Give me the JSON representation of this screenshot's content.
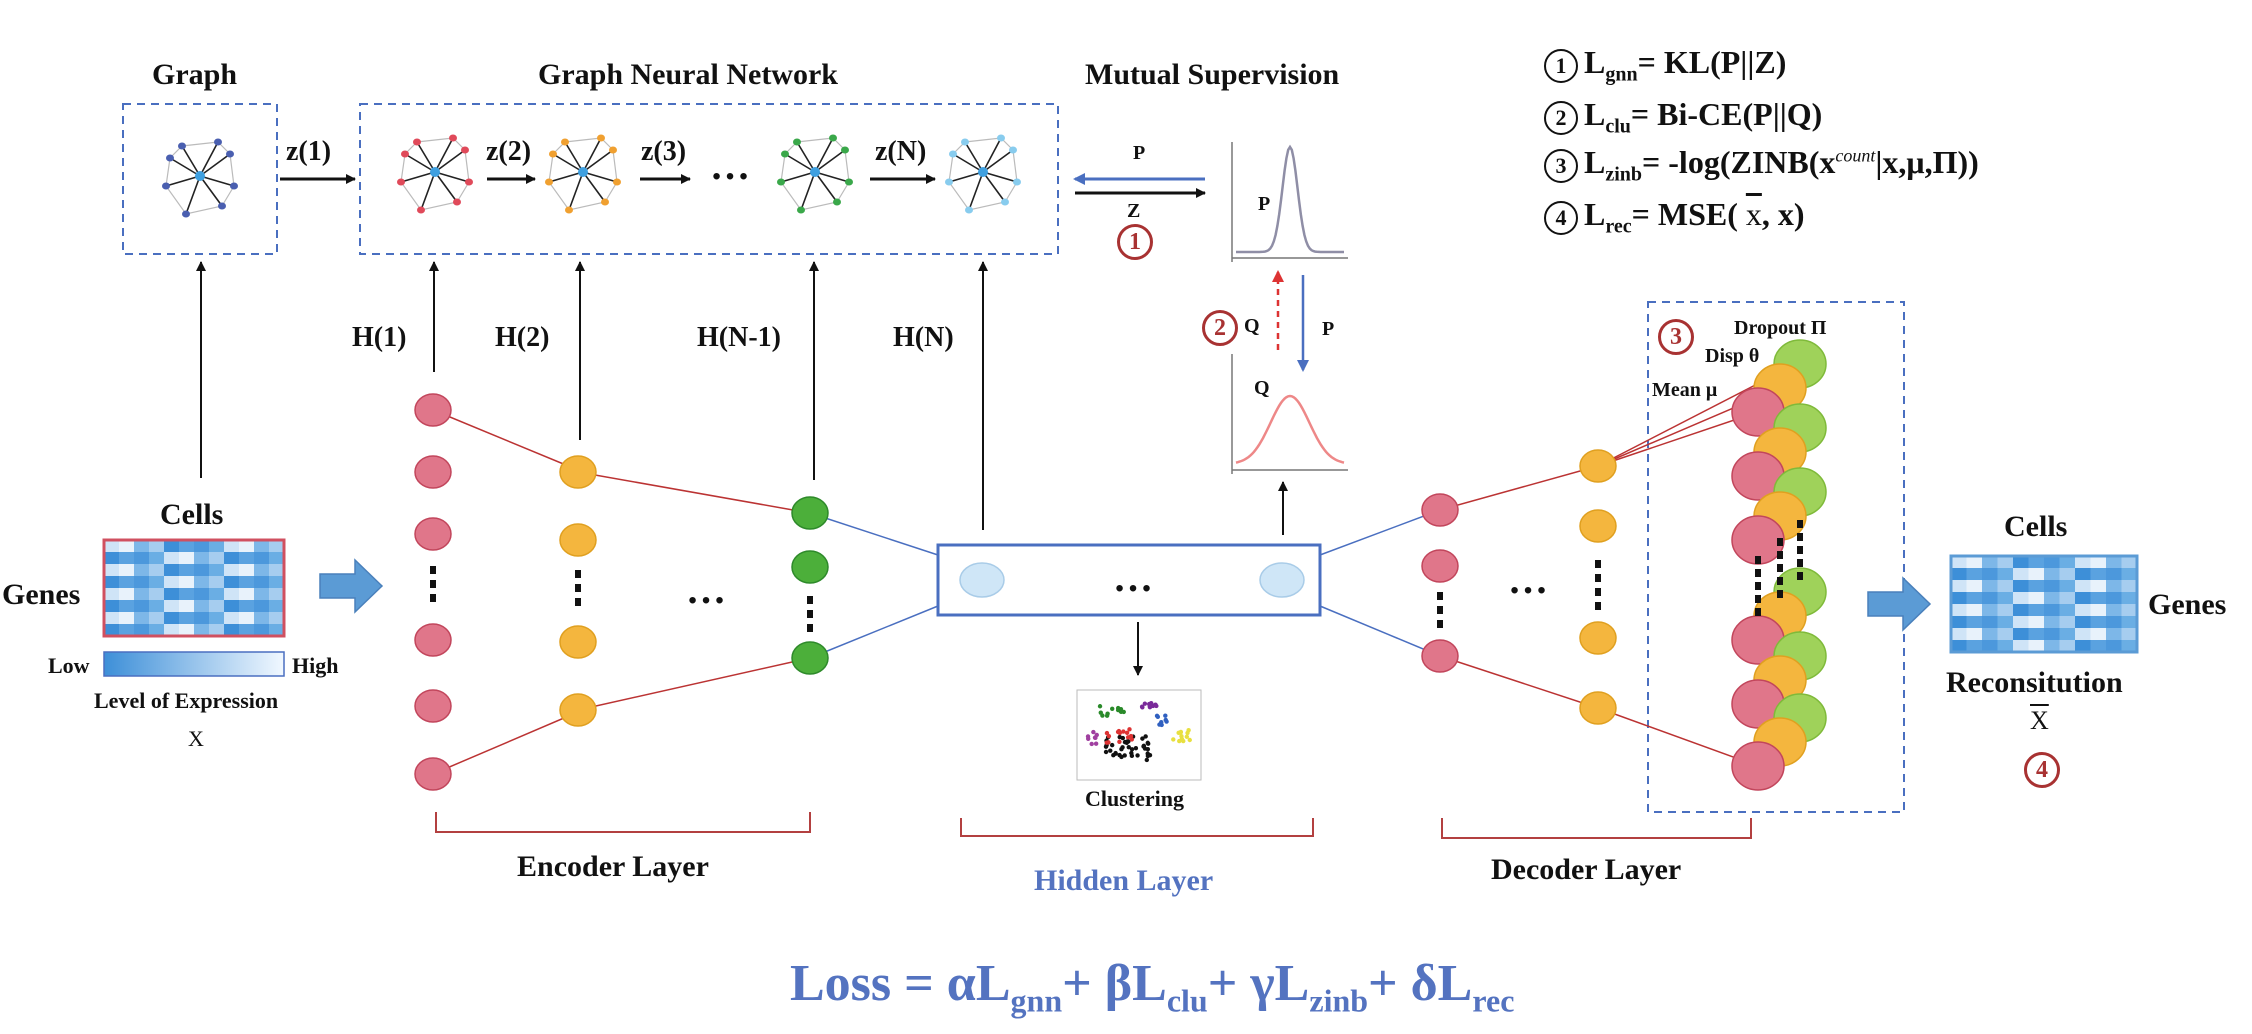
{
  "titles": {
    "graph": "Graph",
    "gnn": "Graph Neural Network",
    "mutual": "Mutual Supervision"
  },
  "z_labels": [
    "z(1)",
    "z(2)",
    "z(3)",
    "z(N)"
  ],
  "ellipsis": "…",
  "h_labels": [
    "H(1)",
    "H(2)",
    "H(N-1)",
    "H(N)"
  ],
  "supervision": {
    "p1": "P",
    "z": "Z",
    "p_curve": "P",
    "q": "Q",
    "p2": "P",
    "q_curve": "Q"
  },
  "input": {
    "cells": "Cells",
    "genes": "Genes",
    "low": "Low",
    "high": "High",
    "level": "Level of Expression",
    "x": "X"
  },
  "output": {
    "cells": "Cells",
    "genes": "Genes",
    "reconstitution": "Reconsitution",
    "xbar": "X"
  },
  "clustering": "Clustering",
  "layers": {
    "encoder": "Encoder Layer",
    "hidden": "Hidden Layer",
    "decoder": "Decoder Layer"
  },
  "zinb": {
    "dropout": "Dropout Π",
    "disp": "Disp θ",
    "mean": "Mean μ"
  },
  "markers": {
    "one": "1",
    "two": "2",
    "three": "3",
    "four": "4"
  },
  "formulas": {
    "f1": {
      "L": "L",
      "sub": "gnn",
      "rest": "= KL(P||Z)"
    },
    "f2": {
      "L": "L",
      "sub": "clu",
      "rest": "= Bi-CE(P||Q)"
    },
    "f3": {
      "L": "L",
      "sub": "zinb",
      "pre": "= -log(ZINB(x",
      "sup": "count",
      "post": "|x,μ,Π))"
    },
    "f4": {
      "L": "L",
      "sub": "rec",
      "pre": "= MSE( ",
      "xbar": "x",
      "post": ", x)"
    }
  },
  "loss": {
    "lhs": "Loss = ",
    "a": "αL",
    "a_sub": "gnn",
    "b": "+ βL",
    "b_sub": "clu",
    "c": "+ γL",
    "c_sub": "zinb",
    "d": "+ δL",
    "d_sub": "rec"
  },
  "colors": {
    "pink": "#e0768a",
    "pink_stroke": "#c2465c",
    "orange": "#f4b63e",
    "green": "#4caf3a",
    "lightgreen": "#9fd25a",
    "lightblue": "#cfe6f7",
    "arrow_blue": "#5b9bd5",
    "box_blue": "#4a6fc0",
    "bracket_red": "#b34040"
  }
}
